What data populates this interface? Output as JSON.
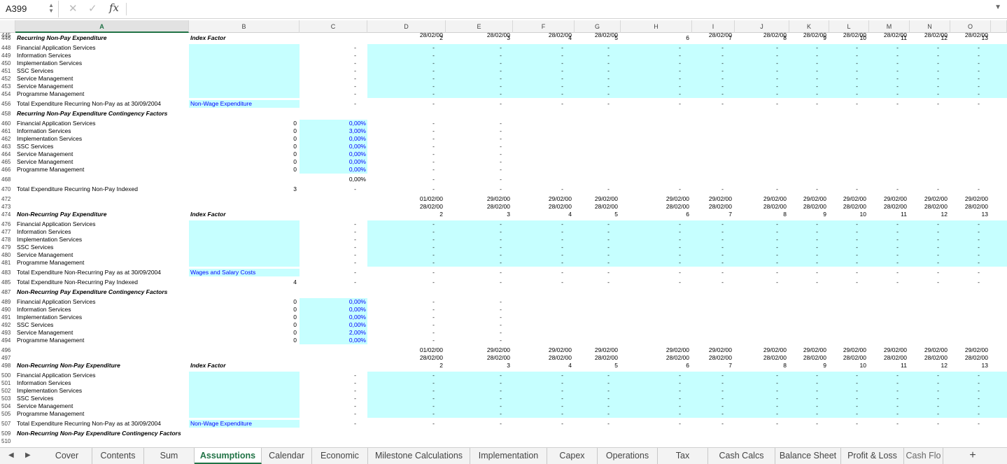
{
  "formula_bar": {
    "cell_ref": "A399",
    "cancel_icon": "✕",
    "enter_icon": "✓",
    "fx_label": "fx",
    "formula": ""
  },
  "columns": [
    "A",
    "B",
    "C",
    "D",
    "E",
    "F",
    "G",
    "H",
    "I",
    "J",
    "K",
    "L",
    "M",
    "N",
    "O"
  ],
  "selected_column": "A",
  "cyan_blocks": [
    {
      "name": "recurring-nonpay-b",
      "rows": [
        448,
        454
      ],
      "cols": [
        "B"
      ]
    },
    {
      "name": "recurring-nonpay-d",
      "rows": [
        448,
        454
      ],
      "cols": [
        "D",
        "O"
      ]
    },
    {
      "name": "recurring-nonpay-b456",
      "rows": [
        456,
        456
      ],
      "cols": [
        "B"
      ]
    },
    {
      "name": "contingency1-c",
      "rows": [
        460,
        466
      ],
      "cols": [
        "C"
      ]
    },
    {
      "name": "nonrecurring-pay-b",
      "rows": [
        476,
        481
      ],
      "cols": [
        "B"
      ]
    },
    {
      "name": "nonrecurring-pay-d",
      "rows": [
        476,
        481
      ],
      "cols": [
        "D",
        "O"
      ]
    },
    {
      "name": "nonrecurring-pay-b483",
      "rows": [
        483,
        483
      ],
      "cols": [
        "B"
      ]
    },
    {
      "name": "contingency2-c",
      "rows": [
        489,
        494
      ],
      "cols": [
        "C"
      ]
    },
    {
      "name": "nonrecurring-nonpay-b",
      "rows": [
        500,
        505
      ],
      "cols": [
        "B"
      ]
    },
    {
      "name": "nonrecurring-nonpay-d",
      "rows": [
        500,
        505
      ],
      "cols": [
        "D",
        "O"
      ]
    },
    {
      "name": "nonrecurring-nonpay-b507",
      "rows": [
        507,
        507
      ],
      "cols": [
        "B"
      ]
    }
  ],
  "rows": [
    {
      "n": "445",
      "cells": {
        "D": "28/02/00",
        "E": "28/02/00",
        "F": "28/02/00",
        "G": "28/02/00",
        "I": "28/02/00",
        "J": "28/02/00",
        "K": "28/02/00",
        "L": "28/02/00",
        "M": "28/02/00",
        "N": "28/02/00",
        "O": "28/02/00"
      }
    },
    {
      "n": "446",
      "cells": {
        "A": "Recurring Non-Pay Expenditure",
        "B": "Index Factor",
        "D": "2",
        "E": "3",
        "F": "4",
        "G": "5",
        "H": "6",
        "I": "7",
        "J": "8",
        "K": "9",
        "L": "10",
        "M": "11",
        "N": "12",
        "O": "13"
      },
      "style": {
        "A": "bi",
        "B": "bi"
      }
    },
    {
      "n": "448",
      "cells": {
        "A": "Financial Application Services",
        "C": "-",
        "D": "-",
        "E": "-",
        "F": "-",
        "G": "-",
        "H": "-",
        "I": "-",
        "J": "-",
        "K": "-",
        "L": "-",
        "M": "-",
        "N": "-",
        "O": "-"
      }
    },
    {
      "n": "449",
      "cells": {
        "A": "Information Services",
        "C": "-",
        "D": "-",
        "E": "-",
        "F": "-",
        "G": "-",
        "H": "-",
        "I": "-",
        "J": "-",
        "K": "-",
        "L": "-",
        "M": "-",
        "N": "-",
        "O": "-"
      }
    },
    {
      "n": "450",
      "cells": {
        "A": "Implementation Services",
        "C": "-",
        "D": "-",
        "E": "-",
        "F": "-",
        "G": "-",
        "H": "-",
        "I": "-",
        "J": "-",
        "K": "-",
        "L": "-",
        "M": "-",
        "N": "-",
        "O": "-"
      }
    },
    {
      "n": "451",
      "cells": {
        "A": "SSC Services",
        "C": "-",
        "D": "-",
        "E": "-",
        "F": "-",
        "G": "-",
        "H": "-",
        "I": "-",
        "J": "-",
        "K": "-",
        "L": "-",
        "M": "-",
        "N": "-",
        "O": "-"
      }
    },
    {
      "n": "452",
      "cells": {
        "A": "Service Management",
        "C": "-",
        "D": "-",
        "E": "-",
        "F": "-",
        "G": "-",
        "H": "-",
        "I": "-",
        "J": "-",
        "K": "-",
        "L": "-",
        "M": "-",
        "N": "-",
        "O": "-"
      }
    },
    {
      "n": "453",
      "cells": {
        "A": "Service Management",
        "C": "-",
        "D": "-",
        "E": "-",
        "F": "-",
        "G": "-",
        "H": "-",
        "I": "-",
        "J": "-",
        "K": "-",
        "L": "-",
        "M": "-",
        "N": "-",
        "O": "-"
      }
    },
    {
      "n": "454",
      "cells": {
        "A": "Programme Management",
        "C": "-",
        "D": "-",
        "E": "-",
        "F": "-",
        "G": "-",
        "H": "-",
        "I": "-",
        "J": "-",
        "K": "-",
        "L": "-",
        "M": "-",
        "N": "-",
        "O": "-"
      }
    },
    {
      "n": "456",
      "cells": {
        "A": "Total Expenditure Recurring Non-Pay as at 30/09/2004",
        "B": "Non-Wage Expenditure",
        "C": "-",
        "D": "-",
        "E": "-",
        "F": "-",
        "G": "-",
        "H": "-",
        "I": "-",
        "J": "-",
        "K": "-",
        "L": "-",
        "M": "-",
        "N": "-",
        "O": "-"
      },
      "style": {
        "B": "blue"
      }
    },
    {
      "n": "458",
      "cells": {
        "A": "Recurring Non-Pay Expenditure Contingency Factors"
      },
      "style": {
        "A": "bi"
      }
    },
    {
      "n": "460",
      "cells": {
        "A": "Financial Application Services",
        "B": "0",
        "C": "0,00%",
        "D": "-",
        "E": "-"
      },
      "style": {
        "C": "blue"
      }
    },
    {
      "n": "461",
      "cells": {
        "A": "Information Services",
        "B": "0",
        "C": "3,00%",
        "D": "-",
        "E": "-"
      },
      "style": {
        "C": "blue"
      }
    },
    {
      "n": "462",
      "cells": {
        "A": "Implementation Services",
        "B": "0",
        "C": "0,00%",
        "D": "-",
        "E": "-"
      },
      "style": {
        "C": "blue"
      }
    },
    {
      "n": "463",
      "cells": {
        "A": "SSC Services",
        "B": "0",
        "C": "0,00%",
        "D": "-",
        "E": "-"
      },
      "style": {
        "C": "blue"
      }
    },
    {
      "n": "464",
      "cells": {
        "A": "Service Management",
        "B": "0",
        "C": "0,00%",
        "D": "-",
        "E": "-"
      },
      "style": {
        "C": "blue"
      }
    },
    {
      "n": "465",
      "cells": {
        "A": "Service Management",
        "B": "0",
        "C": "0,00%",
        "D": "-",
        "E": "-"
      },
      "style": {
        "C": "blue"
      }
    },
    {
      "n": "466",
      "cells": {
        "A": "Programme Management",
        "B": "0",
        "C": "0,00%",
        "D": "-",
        "E": "-"
      },
      "style": {
        "C": "blue"
      }
    },
    {
      "n": "468",
      "cells": {
        "C": "0,00%",
        "D": "-",
        "E": "-"
      }
    },
    {
      "n": "470",
      "cells": {
        "A": "Total Expenditure Recurring Non-Pay Indexed",
        "B": "3",
        "C": "-",
        "D": "-",
        "E": "-",
        "F": "-",
        "G": "-",
        "H": "-",
        "I": "-",
        "J": "-",
        "K": "-",
        "L": "-",
        "M": "-",
        "N": "-",
        "O": "-"
      }
    },
    {
      "n": "472",
      "cells": {
        "D": "01/02/00",
        "E": "29/02/00",
        "F": "29/02/00",
        "G": "29/02/00",
        "H": "29/02/00",
        "I": "29/02/00",
        "J": "29/02/00",
        "K": "29/02/00",
        "L": "29/02/00",
        "M": "29/02/00",
        "N": "29/02/00",
        "O": "29/02/00"
      }
    },
    {
      "n": "473",
      "cells": {
        "D": "28/02/00",
        "E": "28/02/00",
        "F": "28/02/00",
        "G": "28/02/00",
        "H": "28/02/00",
        "I": "28/02/00",
        "J": "28/02/00",
        "K": "28/02/00",
        "L": "28/02/00",
        "M": "28/02/00",
        "N": "28/02/00",
        "O": "28/02/00"
      }
    },
    {
      "n": "474",
      "cells": {
        "A": "Non-Recurring Pay Expenditure",
        "B": "Index Factor",
        "D": "2",
        "E": "3",
        "F": "4",
        "G": "5",
        "H": "6",
        "I": "7",
        "J": "8",
        "K": "9",
        "L": "10",
        "M": "11",
        "N": "12",
        "O": "13"
      },
      "style": {
        "A": "bi",
        "B": "bi"
      }
    },
    {
      "n": "476",
      "cells": {
        "A": "Financial Application Services",
        "C": "-",
        "D": "-",
        "E": "-",
        "F": "-",
        "G": "-",
        "H": "-",
        "I": "-",
        "J": "-",
        "K": "-",
        "L": "-",
        "M": "-",
        "N": "-",
        "O": "-"
      }
    },
    {
      "n": "477",
      "cells": {
        "A": "Information Services",
        "C": "-",
        "D": "-",
        "E": "-",
        "F": "-",
        "G": "-",
        "H": "-",
        "I": "-",
        "J": "-",
        "K": "-",
        "L": "-",
        "M": "-",
        "N": "-",
        "O": "-"
      }
    },
    {
      "n": "478",
      "cells": {
        "A": "Implementation Services",
        "C": "-",
        "D": "-",
        "E": "-",
        "F": "-",
        "G": "-",
        "H": "-",
        "I": "-",
        "J": "-",
        "K": "-",
        "L": "-",
        "M": "-",
        "N": "-",
        "O": "-"
      }
    },
    {
      "n": "479",
      "cells": {
        "A": "SSC Services",
        "C": "-",
        "D": "-",
        "E": "-",
        "F": "-",
        "G": "-",
        "H": "-",
        "I": "-",
        "J": "-",
        "K": "-",
        "L": "-",
        "M": "-",
        "N": "-",
        "O": "-"
      }
    },
    {
      "n": "480",
      "cells": {
        "A": "Service Management",
        "C": "-",
        "D": "-",
        "E": "-",
        "F": "-",
        "G": "-",
        "H": "-",
        "I": "-",
        "J": "-",
        "K": "-",
        "L": "-",
        "M": "-",
        "N": "-",
        "O": "-"
      }
    },
    {
      "n": "481",
      "cells": {
        "A": "Programme Management",
        "C": "-",
        "D": "-",
        "E": "-",
        "F": "-",
        "G": "-",
        "H": "-",
        "I": "-",
        "J": "-",
        "K": "-",
        "L": "-",
        "M": "-",
        "N": "-",
        "O": "-"
      }
    },
    {
      "n": "483",
      "cells": {
        "A": "Total Expenditure Non-Recurring Pay as at 30/09/2004",
        "B": "Wages and Salary Costs",
        "C": "-",
        "D": "-",
        "E": "-",
        "F": "-",
        "G": "-",
        "H": "-",
        "I": "-",
        "J": "-",
        "K": "-",
        "L": "-",
        "M": "-",
        "N": "-",
        "O": "-"
      },
      "style": {
        "B": "blue"
      }
    },
    {
      "n": "485",
      "cells": {
        "A": "Total Expenditure Non-Recurring Pay Indexed",
        "B": "4",
        "C": "-",
        "D": "-",
        "E": "-",
        "F": "-",
        "G": "-",
        "H": "-",
        "I": "-",
        "J": "-",
        "K": "-",
        "L": "-",
        "M": "-",
        "N": "-",
        "O": "-"
      }
    },
    {
      "n": "487",
      "cells": {
        "A": "Non-Recurring Pay Expenditure Contingency Factors"
      },
      "style": {
        "A": "bi"
      }
    },
    {
      "n": "489",
      "cells": {
        "A": "Financial Application Services",
        "B": "0",
        "C": "0,00%",
        "D": "-",
        "E": "-"
      },
      "style": {
        "C": "blue"
      }
    },
    {
      "n": "490",
      "cells": {
        "A": "Information Services",
        "B": "0",
        "C": "0,00%",
        "D": "-",
        "E": "-"
      },
      "style": {
        "C": "blue"
      }
    },
    {
      "n": "491",
      "cells": {
        "A": "Implementation Services",
        "B": "0",
        "C": "0,00%",
        "D": "-",
        "E": "-"
      },
      "style": {
        "C": "blue"
      }
    },
    {
      "n": "492",
      "cells": {
        "A": "SSC Services",
        "B": "0",
        "C": "0,00%",
        "D": "-",
        "E": "-"
      },
      "style": {
        "C": "blue"
      }
    },
    {
      "n": "493",
      "cells": {
        "A": "Service Management",
        "B": "0",
        "C": "2,00%",
        "D": "-",
        "E": "-"
      },
      "style": {
        "C": "blue"
      }
    },
    {
      "n": "494",
      "cells": {
        "A": "Programme Management",
        "B": "0",
        "C": "0,00%",
        "D": "-",
        "E": "-"
      },
      "style": {
        "C": "blue"
      }
    },
    {
      "n": "496",
      "cells": {
        "D": "01/02/00",
        "E": "29/02/00",
        "F": "29/02/00",
        "G": "29/02/00",
        "H": "29/02/00",
        "I": "29/02/00",
        "J": "29/02/00",
        "K": "29/02/00",
        "L": "29/02/00",
        "M": "29/02/00",
        "N": "29/02/00",
        "O": "29/02/00"
      }
    },
    {
      "n": "497",
      "cells": {
        "D": "28/02/00",
        "E": "28/02/00",
        "F": "28/02/00",
        "G": "28/02/00",
        "H": "28/02/00",
        "I": "28/02/00",
        "J": "28/02/00",
        "K": "28/02/00",
        "L": "28/02/00",
        "M": "28/02/00",
        "N": "28/02/00",
        "O": "28/02/00"
      }
    },
    {
      "n": "498",
      "cells": {
        "A": "Non-Recurring Non-Pay Expenditure",
        "B": "Index Factor",
        "D": "2",
        "E": "3",
        "F": "4",
        "G": "5",
        "H": "6",
        "I": "7",
        "J": "8",
        "K": "9",
        "L": "10",
        "M": "11",
        "N": "12",
        "O": "13"
      },
      "style": {
        "A": "bi",
        "B": "bi"
      }
    },
    {
      "n": "500",
      "cells": {
        "A": "Financial Application Services",
        "C": "-",
        "D": "-",
        "E": "-",
        "F": "-",
        "G": "-",
        "H": "-",
        "I": "-",
        "J": "-",
        "K": "-",
        "L": "-",
        "M": "-",
        "N": "-",
        "O": "-"
      }
    },
    {
      "n": "501",
      "cells": {
        "A": "Information Services",
        "C": "-",
        "D": "-",
        "E": "-",
        "F": "-",
        "G": "-",
        "H": "-",
        "I": "-",
        "J": "-",
        "K": "-",
        "L": "-",
        "M": "-",
        "N": "-",
        "O": "-"
      }
    },
    {
      "n": "502",
      "cells": {
        "A": "Implementation Services",
        "C": "-",
        "D": "-",
        "E": "-",
        "F": "-",
        "G": "-",
        "H": "-",
        "I": "-",
        "J": "-",
        "K": "-",
        "L": "-",
        "M": "-",
        "N": "-",
        "O": "-"
      }
    },
    {
      "n": "503",
      "cells": {
        "A": "SSC Services",
        "C": "-",
        "D": "-",
        "E": "-",
        "F": "-",
        "G": "-",
        "H": "-",
        "I": "-",
        "J": "-",
        "K": "-",
        "L": "-",
        "M": "-",
        "N": "-",
        "O": "-"
      }
    },
    {
      "n": "504",
      "cells": {
        "A": "Service Management",
        "C": "-",
        "D": "-",
        "E": "-",
        "F": "-",
        "G": "-",
        "H": "-",
        "I": "-",
        "J": "-",
        "K": "-",
        "L": "-",
        "M": "-",
        "N": "-",
        "O": "-"
      }
    },
    {
      "n": "505",
      "cells": {
        "A": "Programme Management",
        "C": "-",
        "D": "-",
        "E": "-",
        "F": "-",
        "G": "-",
        "H": "-",
        "I": "-",
        "J": "-",
        "K": "-",
        "L": "-",
        "M": "-",
        "N": "-",
        "O": "-"
      }
    },
    {
      "n": "507",
      "cells": {
        "A": "Total Expenditure Recurring Non-Pay as at 30/09/2004",
        "B": "Non-Wage Expenditure",
        "C": "-",
        "D": "-",
        "E": "-",
        "F": "-",
        "G": "-",
        "H": "-",
        "I": "-",
        "J": "-",
        "K": "-",
        "L": "-",
        "M": "-",
        "N": "-",
        "O": "-"
      },
      "style": {
        "B": "blue"
      }
    },
    {
      "n": "509",
      "cells": {
        "A": "Non-Recurring Non-Pay Expenditure Contingency Factors"
      },
      "style": {
        "A": "bi"
      }
    },
    {
      "n": "510",
      "cells": {}
    }
  ],
  "sheet_tabs": [
    "Cover",
    "Contents",
    "Sum",
    "Assumptions",
    "Calendar",
    "Economic",
    "Milestone Calculations",
    "Implementation",
    "Capex",
    "Operations",
    "Tax",
    "Cash Calcs",
    "Balance Sheet",
    "Profit & Loss",
    "Cash Flo"
  ],
  "active_tab": "Assumptions",
  "add_sheet_label": "+",
  "nav_prev": "◀",
  "nav_next": "▶",
  "colors": {
    "selection": "#217346",
    "input_fill": "#c6ffff",
    "input_text": "#0000ff"
  }
}
